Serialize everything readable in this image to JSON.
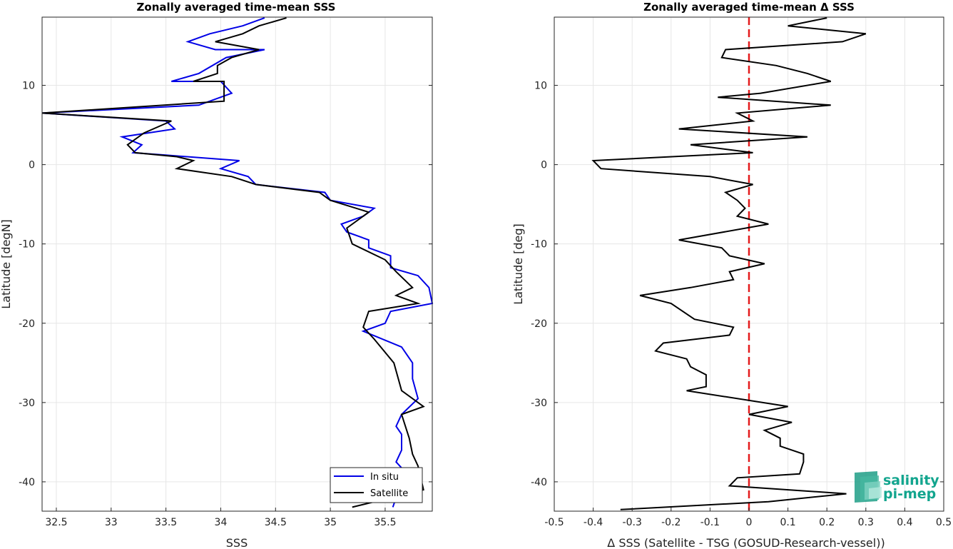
{
  "chart_data": [
    {
      "type": "line",
      "title": "Zonally averaged time-mean SSS",
      "xlabel": "SSS",
      "ylabel": "Latitude [degN]",
      "xlim": [
        32.37,
        35.93
      ],
      "ylim": [
        -43.7,
        18.6
      ],
      "xticks": [
        "32.5",
        "33",
        "33.5",
        "34",
        "34.5",
        "35",
        "35.5"
      ],
      "xtick_values": [
        32.5,
        33,
        33.5,
        34,
        34.5,
        35,
        35.5
      ],
      "yticks": [
        "10",
        "0",
        "-10",
        "-20",
        "-30",
        "-40"
      ],
      "ytick_values": [
        10,
        0,
        -10,
        -20,
        -30,
        -40
      ],
      "grid": true,
      "legend": "bottom-right",
      "series": [
        {
          "name": "In situ",
          "color": "#0000e6",
          "points": [
            [
              34.4,
              18.5
            ],
            [
              34.2,
              17.5
            ],
            [
              33.9,
              16.5
            ],
            [
              33.7,
              15.5
            ],
            [
              33.95,
              14.5
            ],
            [
              34.4,
              14.5
            ],
            [
              34.05,
              13.5
            ],
            [
              33.8,
              11.5
            ],
            [
              33.55,
              10.5
            ],
            [
              34.0,
              10.5
            ],
            [
              34.1,
              9.0
            ],
            [
              33.8,
              7.5
            ],
            [
              32.37,
              6.5
            ],
            [
              33.5,
              5.5
            ],
            [
              33.58,
              4.5
            ],
            [
              33.1,
              3.5
            ],
            [
              33.28,
              2.5
            ],
            [
              33.2,
              1.5
            ],
            [
              33.5,
              1.2
            ],
            [
              34.17,
              0.5
            ],
            [
              34.0,
              -0.5
            ],
            [
              34.25,
              -1.5
            ],
            [
              34.32,
              -2.5
            ],
            [
              34.95,
              -3.5
            ],
            [
              35.0,
              -4.5
            ],
            [
              35.4,
              -5.5
            ],
            [
              35.3,
              -6.5
            ],
            [
              35.1,
              -7.5
            ],
            [
              35.15,
              -8.5
            ],
            [
              35.35,
              -9.5
            ],
            [
              35.35,
              -10.5
            ],
            [
              35.55,
              -11.5
            ],
            [
              35.55,
              -13.0
            ],
            [
              35.8,
              -14.0
            ],
            [
              35.9,
              -15.5
            ],
            [
              35.93,
              -17.5
            ],
            [
              35.55,
              -18.5
            ],
            [
              35.5,
              -20.0
            ],
            [
              35.3,
              -21.0
            ],
            [
              35.65,
              -23.0
            ],
            [
              35.75,
              -25.0
            ],
            [
              35.75,
              -27.0
            ],
            [
              35.8,
              -29.5
            ],
            [
              35.65,
              -31.5
            ],
            [
              35.6,
              -33.0
            ],
            [
              35.65,
              -34.0
            ],
            [
              35.65,
              -36.0
            ],
            [
              35.6,
              -37.5
            ],
            [
              35.7,
              -39.0
            ],
            [
              35.75,
              -40.5
            ],
            [
              35.6,
              -42.0
            ],
            [
              35.57,
              -43.2
            ]
          ]
        },
        {
          "name": "Satellite",
          "color": "#000000",
          "points": [
            [
              34.6,
              18.5
            ],
            [
              34.35,
              17.5
            ],
            [
              34.2,
              16.5
            ],
            [
              33.95,
              15.5
            ],
            [
              34.35,
              14.5
            ],
            [
              34.1,
              13.5
            ],
            [
              33.97,
              12.5
            ],
            [
              33.97,
              11.5
            ],
            [
              33.75,
              10.5
            ],
            [
              34.03,
              10.5
            ],
            [
              34.03,
              8.0
            ],
            [
              32.37,
              6.5
            ],
            [
              33.55,
              5.5
            ],
            [
              33.3,
              4.0
            ],
            [
              33.15,
              2.5
            ],
            [
              33.22,
              1.5
            ],
            [
              33.6,
              1.0
            ],
            [
              33.75,
              0.5
            ],
            [
              33.6,
              -0.5
            ],
            [
              34.1,
              -1.5
            ],
            [
              34.32,
              -2.5
            ],
            [
              34.9,
              -3.5
            ],
            [
              35.0,
              -4.5
            ],
            [
              35.35,
              -6.0
            ],
            [
              35.15,
              -8.0
            ],
            [
              35.2,
              -10.0
            ],
            [
              35.5,
              -12.0
            ],
            [
              35.6,
              -13.5
            ],
            [
              35.75,
              -15.5
            ],
            [
              35.6,
              -16.5
            ],
            [
              35.8,
              -17.5
            ],
            [
              35.35,
              -18.5
            ],
            [
              35.3,
              -20.5
            ],
            [
              35.4,
              -22.0
            ],
            [
              35.58,
              -25.0
            ],
            [
              35.65,
              -28.5
            ],
            [
              35.85,
              -30.5
            ],
            [
              35.65,
              -31.5
            ],
            [
              35.72,
              -34.5
            ],
            [
              35.75,
              -36.5
            ],
            [
              35.8,
              -38.0
            ],
            [
              35.85,
              -41.0
            ],
            [
              35.2,
              -43.2
            ]
          ]
        }
      ]
    },
    {
      "type": "line",
      "title": "Zonally averaged time-mean Δ SSS",
      "xlabel": "Δ SSS (Satellite - TSG (GOSUD-Research-vessel))",
      "ylabel": "Latitude [deg]",
      "xlim": [
        -0.5,
        0.5
      ],
      "ylim": [
        -43.7,
        18.6
      ],
      "xticks": [
        "-0.5",
        "-0.4",
        "-0.3",
        "-0.2",
        "-0.1",
        "0",
        "0.1",
        "0.2",
        "0.3",
        "0.4",
        "0.5"
      ],
      "xtick_values": [
        -0.5,
        -0.4,
        -0.3,
        -0.2,
        -0.1,
        0,
        0.1,
        0.2,
        0.3,
        0.4,
        0.5
      ],
      "yticks": [
        "10",
        "0",
        "-10",
        "-20",
        "-30",
        "-40"
      ],
      "ytick_values": [
        10,
        0,
        -10,
        -20,
        -30,
        -40
      ],
      "grid": true,
      "zero_line_color": "#e41a1c",
      "series": [
        {
          "color": "#000000",
          "points": [
            [
              0.2,
              18.5
            ],
            [
              0.1,
              17.5
            ],
            [
              0.3,
              16.5
            ],
            [
              0.24,
              15.5
            ],
            [
              -0.06,
              14.5
            ],
            [
              -0.07,
              13.5
            ],
            [
              0.07,
              12.5
            ],
            [
              0.15,
              11.5
            ],
            [
              0.21,
              10.5
            ],
            [
              0.03,
              9.0
            ],
            [
              -0.08,
              8.5
            ],
            [
              0.21,
              7.5
            ],
            [
              -0.03,
              6.5
            ],
            [
              0.01,
              5.5
            ],
            [
              -0.18,
              4.5
            ],
            [
              0.15,
              3.5
            ],
            [
              -0.15,
              2.5
            ],
            [
              0.01,
              1.5
            ],
            [
              -0.4,
              0.5
            ],
            [
              -0.38,
              -0.5
            ],
            [
              -0.1,
              -1.5
            ],
            [
              0.01,
              -2.5
            ],
            [
              -0.06,
              -3.5
            ],
            [
              -0.03,
              -4.5
            ],
            [
              -0.01,
              -5.5
            ],
            [
              -0.03,
              -6.5
            ],
            [
              0.05,
              -7.5
            ],
            [
              -0.18,
              -9.5
            ],
            [
              -0.07,
              -10.5
            ],
            [
              -0.05,
              -11.5
            ],
            [
              0.04,
              -12.5
            ],
            [
              -0.05,
              -13.5
            ],
            [
              -0.04,
              -14.5
            ],
            [
              -0.15,
              -15.5
            ],
            [
              -0.28,
              -16.5
            ],
            [
              -0.2,
              -17.5
            ],
            [
              -0.14,
              -19.5
            ],
            [
              -0.04,
              -20.5
            ],
            [
              -0.05,
              -21.5
            ],
            [
              -0.22,
              -22.5
            ],
            [
              -0.24,
              -23.5
            ],
            [
              -0.16,
              -24.5
            ],
            [
              -0.15,
              -25.5
            ],
            [
              -0.11,
              -26.5
            ],
            [
              -0.11,
              -28.0
            ],
            [
              -0.16,
              -28.5
            ],
            [
              0.1,
              -30.5
            ],
            [
              0.0,
              -31.5
            ],
            [
              0.11,
              -32.5
            ],
            [
              0.04,
              -33.5
            ],
            [
              0.08,
              -34.5
            ],
            [
              0.08,
              -35.5
            ],
            [
              0.14,
              -36.5
            ],
            [
              0.14,
              -37.5
            ],
            [
              0.13,
              -39.0
            ],
            [
              -0.03,
              -39.5
            ],
            [
              -0.05,
              -40.5
            ],
            [
              0.25,
              -41.5
            ],
            [
              0.05,
              -42.5
            ],
            [
              -0.33,
              -43.5
            ]
          ]
        }
      ]
    }
  ],
  "legend": {
    "items": [
      {
        "label": "In situ",
        "color": "#0000e6"
      },
      {
        "label": "Satellite",
        "color": "#000000"
      }
    ]
  },
  "logo": {
    "line1": "salinity",
    "line2": "pi-mep",
    "color": "#12a58e"
  }
}
